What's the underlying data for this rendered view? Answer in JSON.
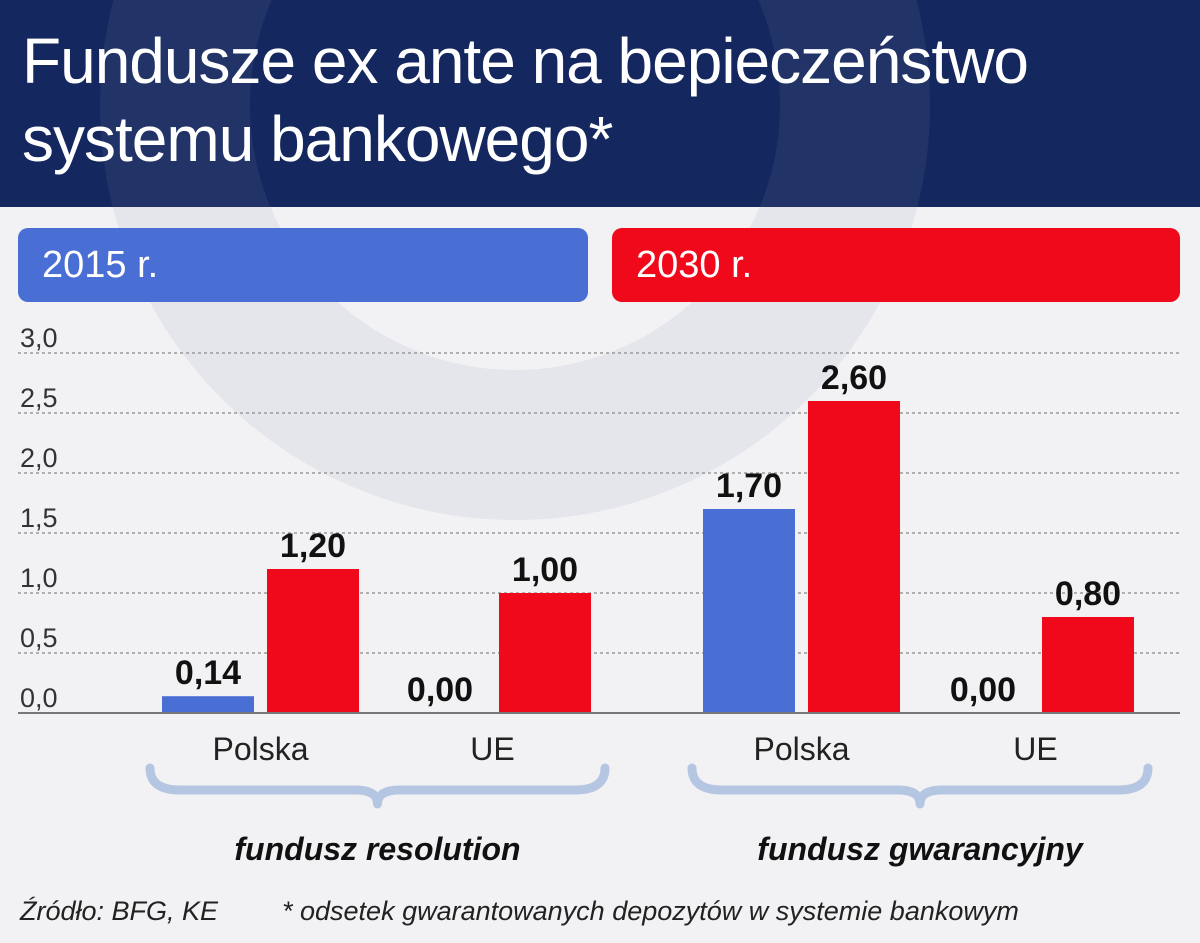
{
  "title_lines": [
    "Fundusze ex ante na bepieczeństwo",
    "systemu bankowego*"
  ],
  "legend": [
    {
      "label": "2015 r.",
      "color": "#4a6fd4"
    },
    {
      "label": "2030 r.",
      "color": "#f0091a"
    }
  ],
  "footer": {
    "source": "Źródło: BFG, KE",
    "footnote": "* odsetek gwarantowanych depozytów w systemie bankowym"
  },
  "chart_data": {
    "type": "bar",
    "ylim": [
      0,
      3.0
    ],
    "yticks": [
      "0,0",
      "0,5",
      "1,0",
      "1,5",
      "2,0",
      "2,5",
      "3,0"
    ],
    "grid": true,
    "groups": [
      {
        "label": "fundusz resolution",
        "categories": [
          {
            "label": "Polska",
            "values": [
              0.14,
              1.2
            ],
            "value_labels": [
              "0,14",
              "1,20"
            ]
          },
          {
            "label": "UE",
            "values": [
              0.0,
              1.0
            ],
            "value_labels": [
              "0,00",
              "1,00"
            ]
          }
        ]
      },
      {
        "label": "fundusz gwarancyjny",
        "categories": [
          {
            "label": "Polska",
            "values": [
              1.7,
              2.6
            ],
            "value_labels": [
              "1,70",
              "2,60"
            ]
          },
          {
            "label": "UE",
            "values": [
              0.0,
              0.8
            ],
            "value_labels": [
              "0,00",
              "0,80"
            ]
          }
        ]
      }
    ],
    "series": [
      {
        "name": "2015 r.",
        "color": "#4a6fd4"
      },
      {
        "name": "2030 r.",
        "color": "#f0091a"
      }
    ]
  }
}
